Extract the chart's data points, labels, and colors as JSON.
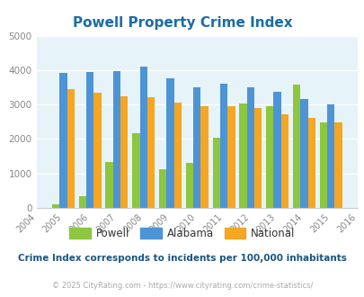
{
  "title": "Powell Property Crime Index",
  "years": [
    2004,
    2005,
    2006,
    2007,
    2008,
    2009,
    2010,
    2011,
    2012,
    2013,
    2014,
    2015,
    2016
  ],
  "year_labels": [
    "2004",
    "2005",
    "2006",
    "2007",
    "2008",
    "2009",
    "2010",
    "2011",
    "2012",
    "2013",
    "2014",
    "2015",
    "2016"
  ],
  "powell": [
    null,
    100,
    350,
    1330,
    2160,
    1130,
    1300,
    2030,
    3040,
    2960,
    3570,
    2490,
    null
  ],
  "alabama": [
    null,
    3910,
    3950,
    3980,
    4090,
    3770,
    3510,
    3610,
    3510,
    3360,
    3170,
    3010,
    null
  ],
  "national": [
    null,
    3440,
    3350,
    3230,
    3220,
    3060,
    2960,
    2940,
    2890,
    2720,
    2610,
    2480,
    null
  ],
  "powell_color": "#8dc63f",
  "alabama_color": "#4d94d5",
  "national_color": "#f5a623",
  "bg_color": "#e6f3f8",
  "ylim": [
    0,
    5000
  ],
  "yticks": [
    0,
    1000,
    2000,
    3000,
    4000,
    5000
  ],
  "bar_width": 0.28,
  "title_color": "#1a6da8",
  "subtitle": "Crime Index corresponds to incidents per 100,000 inhabitants",
  "subtitle_color": "#1a5580",
  "footer": "© 2025 CityRating.com - https://www.cityrating.com/crime-statistics/",
  "footer_color": "#aaaaaa",
  "legend_labels": [
    "Powell",
    "Alabama",
    "National"
  ]
}
